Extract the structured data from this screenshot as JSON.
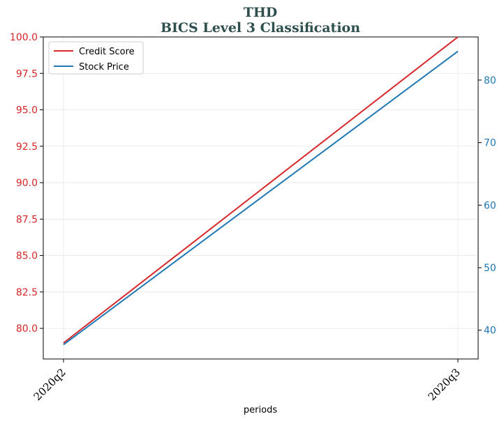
{
  "chart_data": {
    "type": "line",
    "title": "THD",
    "subtitle": "BICS Level 3 Classification",
    "xlabel": "periods",
    "ylabel_left": "",
    "ylabel_right": "",
    "categories": [
      "2020q2",
      "2020q3"
    ],
    "series": [
      {
        "name": "Credit Score",
        "axis": "left",
        "color": "#d62728",
        "values": [
          79.0,
          100.0
        ]
      },
      {
        "name": "Stock Price",
        "axis": "right",
        "color": "#1f77b4",
        "values": [
          37.7,
          84.6
        ]
      }
    ],
    "left_axis": {
      "ylim": [
        77.9,
        100.0
      ],
      "ticks": [
        80.0,
        82.5,
        85.0,
        87.5,
        90.0,
        92.5,
        95.0,
        97.5,
        100.0
      ],
      "tick_labels": [
        "80.0",
        "82.5",
        "85.0",
        "87.5",
        "90.0",
        "92.5",
        "95.0",
        "97.5",
        "100.0"
      ],
      "color": "#d62728"
    },
    "right_axis": {
      "ylim": [
        35.4,
        86.9
      ],
      "ticks": [
        40,
        50,
        60,
        70,
        80
      ],
      "tick_labels": [
        "40",
        "50",
        "60",
        "70",
        "80"
      ],
      "color": "#1f77b4"
    },
    "grid": true,
    "legend_position": "top-left",
    "title_color": "#2f4f4f"
  }
}
